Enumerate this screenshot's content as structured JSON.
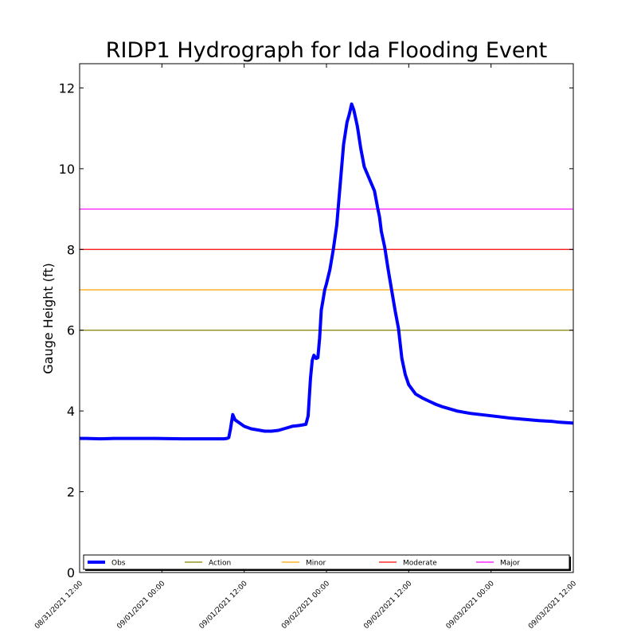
{
  "chart_data": {
    "type": "line",
    "title": "RIDP1 Hydrograph for Ida Flooding Event",
    "xlabel": "",
    "ylabel": "Gauge Height (ft)",
    "ylim": [
      0,
      12.6
    ],
    "yticks": [
      0,
      2,
      4,
      6,
      8,
      10,
      12
    ],
    "xlim": [
      "08/31/2021 12:00",
      "09/03/2021 12:00"
    ],
    "xticks": [
      "08/31/2021 12:00",
      "09/01/2021 00:00",
      "09/01/2021 12:00",
      "09/02/2021 00:00",
      "09/02/2021 12:00",
      "09/03/2021 00:00",
      "09/03/2021 12:00"
    ],
    "grid": false,
    "legend_position": "bottom",
    "legend": [
      "Obs",
      "Action",
      "Minor",
      "Moderate",
      "Major"
    ],
    "series": [
      {
        "name": "Obs",
        "color": "#0000ff",
        "x": [
          "08/31/2021 12:00",
          "08/31/2021 13:00",
          "08/31/2021 15:00",
          "08/31/2021 17:00",
          "08/31/2021 21:00",
          "08/31/2021 23:00",
          "09/01/2021 03:00",
          "09/01/2021 08:00",
          "09/01/2021 09:00",
          "09/01/2021 09:30",
          "09/01/2021 09:45",
          "09/01/2021 10:00",
          "09/01/2021 10:20",
          "09/01/2021 10:40",
          "09/01/2021 11:00",
          "09/01/2021 12:00",
          "09/01/2021 13:00",
          "09/01/2021 14:00",
          "09/01/2021 15:00",
          "09/01/2021 16:00",
          "09/01/2021 17:00",
          "09/01/2021 18:00",
          "09/01/2021 19:00",
          "09/01/2021 20:00",
          "09/01/2021 21:00",
          "09/01/2021 21:20",
          "09/01/2021 21:40",
          "09/01/2021 21:55",
          "09/01/2021 22:10",
          "09/01/2021 22:30",
          "09/01/2021 22:45",
          "09/01/2021 23:00",
          "09/01/2021 23:15",
          "09/01/2021 23:30",
          "09/01/2021 23:45",
          "09/02/2021 00:00",
          "09/02/2021 00:30",
          "09/02/2021 01:00",
          "09/02/2021 01:30",
          "09/02/2021 02:00",
          "09/02/2021 02:30",
          "09/02/2021 03:00",
          "09/02/2021 03:20",
          "09/02/2021 03:40",
          "09/02/2021 04:00",
          "09/02/2021 04:30",
          "09/02/2021 05:00",
          "09/02/2021 05:30",
          "09/02/2021 06:00",
          "09/02/2021 06:30",
          "09/02/2021 07:00",
          "09/02/2021 07:30",
          "09/02/2021 07:45",
          "09/02/2021 08:00",
          "09/02/2021 08:30",
          "09/02/2021 09:00",
          "09/02/2021 09:30",
          "09/02/2021 10:00",
          "09/02/2021 10:30",
          "09/02/2021 11:00",
          "09/02/2021 11:30",
          "09/02/2021 12:00",
          "09/02/2021 13:00",
          "09/02/2021 14:00",
          "09/02/2021 15:00",
          "09/02/2021 16:00",
          "09/02/2021 17:00",
          "09/02/2021 18:00",
          "09/02/2021 19:00",
          "09/02/2021 20:00",
          "09/02/2021 21:00",
          "09/02/2021 22:00",
          "09/02/2021 23:00",
          "09/03/2021 00:00",
          "09/03/2021 01:00",
          "09/03/2021 03:00",
          "09/03/2021 05:00",
          "09/03/2021 07:00",
          "09/03/2021 09:00",
          "09/03/2021 10:00",
          "09/03/2021 12:00"
        ],
        "y": [
          3.32,
          3.32,
          3.31,
          3.32,
          3.32,
          3.32,
          3.31,
          3.31,
          3.31,
          3.32,
          3.34,
          3.55,
          3.91,
          3.78,
          3.74,
          3.62,
          3.56,
          3.53,
          3.5,
          3.5,
          3.52,
          3.57,
          3.62,
          3.64,
          3.67,
          3.88,
          4.8,
          5.25,
          5.38,
          5.3,
          5.32,
          5.8,
          6.5,
          6.75,
          7.0,
          7.15,
          7.5,
          8.0,
          8.6,
          9.6,
          10.6,
          11.15,
          11.35,
          11.6,
          11.45,
          11.05,
          10.5,
          10.05,
          9.85,
          9.65,
          9.45,
          9.0,
          8.8,
          8.45,
          8.05,
          7.5,
          7.0,
          6.5,
          6.05,
          5.3,
          4.9,
          4.65,
          4.42,
          4.32,
          4.24,
          4.16,
          4.1,
          4.05,
          4.0,
          3.97,
          3.94,
          3.92,
          3.9,
          3.88,
          3.86,
          3.82,
          3.79,
          3.76,
          3.74,
          3.72,
          3.7
        ]
      },
      {
        "name": "Action",
        "color": "#808000",
        "value": 6
      },
      {
        "name": "Minor",
        "color": "#ffa500",
        "value": 7
      },
      {
        "name": "Moderate",
        "color": "#ff0000",
        "value": 8
      },
      {
        "name": "Major",
        "color": "#ff00ff",
        "value": 9
      }
    ]
  }
}
